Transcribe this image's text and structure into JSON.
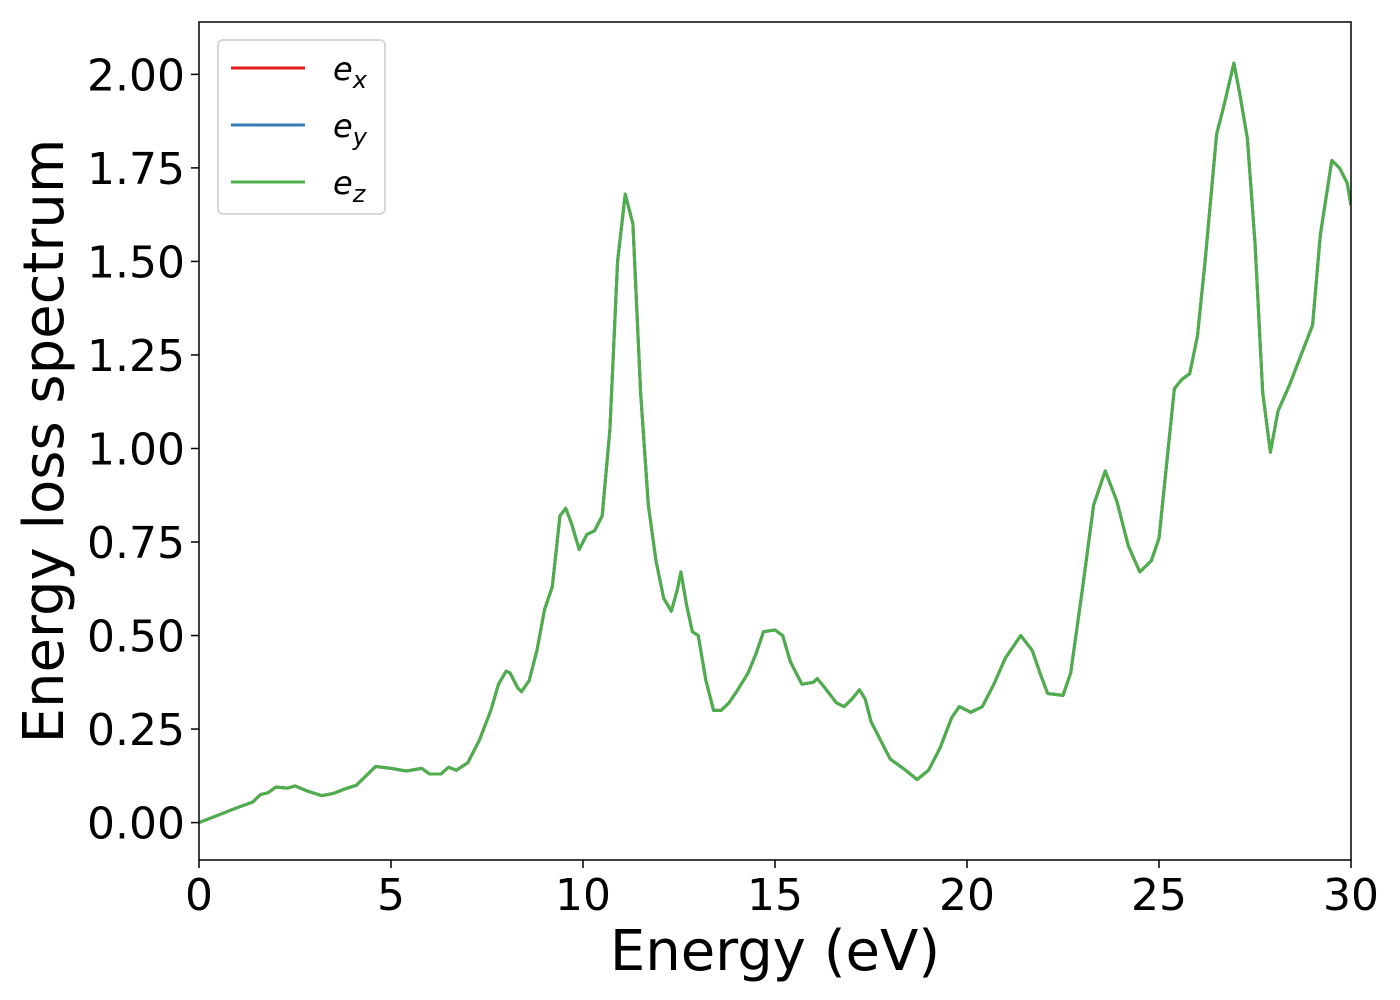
{
  "chart_data": {
    "type": "line",
    "xlabel": "Energy (eV)",
    "ylabel": "Energy loss spectrum",
    "x": [
      0,
      0.5,
      1,
      1.4,
      1.6,
      1.8,
      2.0,
      2.3,
      2.5,
      2.8,
      3.2,
      3.5,
      3.8,
      4.1,
      4.4,
      4.6,
      5.0,
      5.4,
      5.8,
      6.0,
      6.3,
      6.5,
      6.7,
      7.0,
      7.3,
      7.6,
      7.8,
      8.0,
      8.1,
      8.3,
      8.4,
      8.6,
      8.8,
      9.0,
      9.2,
      9.4,
      9.55,
      9.7,
      9.9,
      10.1,
      10.3,
      10.5,
      10.7,
      10.9,
      11.1,
      11.3,
      11.5,
      11.7,
      11.9,
      12.1,
      12.3,
      12.45,
      12.55,
      12.7,
      12.85,
      13.0,
      13.2,
      13.4,
      13.6,
      13.8,
      14.0,
      14.3,
      14.5,
      14.7,
      15.0,
      15.2,
      15.4,
      15.7,
      16.0,
      16.1,
      16.3,
      16.6,
      16.8,
      17.0,
      17.2,
      17.35,
      17.5,
      17.8,
      18.0,
      18.4,
      18.7,
      19.0,
      19.3,
      19.6,
      19.8,
      20.1,
      20.4,
      20.7,
      21.0,
      21.4,
      21.7,
      21.9,
      22.1,
      22.5,
      22.7,
      23.0,
      23.3,
      23.6,
      23.9,
      24.2,
      24.5,
      24.8,
      25.0,
      25.2,
      25.4,
      25.6,
      25.8,
      26.0,
      26.2,
      26.5,
      26.7,
      26.95,
      27.1,
      27.3,
      27.5,
      27.7,
      27.9,
      28.1,
      28.4,
      28.7,
      29.0,
      29.2,
      29.5,
      29.7,
      29.9,
      30.0
    ],
    "series": [
      {
        "name": "ex",
        "color": "#e41a1c",
        "values": [
          0,
          0.02,
          0.04,
          0.055,
          0.075,
          0.08,
          0.095,
          0.092,
          0.098,
          0.085,
          0.072,
          0.078,
          0.09,
          0.1,
          0.13,
          0.15,
          0.145,
          0.138,
          0.145,
          0.13,
          0.13,
          0.148,
          0.14,
          0.16,
          0.22,
          0.3,
          0.37,
          0.405,
          0.4,
          0.36,
          0.35,
          0.38,
          0.46,
          0.57,
          0.63,
          0.82,
          0.84,
          0.8,
          0.73,
          0.77,
          0.78,
          0.82,
          1.05,
          1.5,
          1.68,
          1.6,
          1.15,
          0.85,
          0.7,
          0.6,
          0.565,
          0.62,
          0.67,
          0.58,
          0.51,
          0.5,
          0.38,
          0.3,
          0.3,
          0.32,
          0.35,
          0.4,
          0.45,
          0.51,
          0.515,
          0.5,
          0.43,
          0.37,
          0.375,
          0.385,
          0.36,
          0.32,
          0.31,
          0.33,
          0.355,
          0.33,
          0.27,
          0.21,
          0.17,
          0.14,
          0.115,
          0.14,
          0.2,
          0.28,
          0.31,
          0.295,
          0.31,
          0.37,
          0.44,
          0.5,
          0.46,
          0.4,
          0.345,
          0.34,
          0.4,
          0.62,
          0.85,
          0.94,
          0.86,
          0.74,
          0.67,
          0.7,
          0.76,
          0.96,
          1.16,
          1.185,
          1.2,
          1.3,
          1.5,
          1.84,
          1.92,
          2.03,
          1.95,
          1.83,
          1.55,
          1.15,
          0.99,
          1.1,
          1.17,
          1.25,
          1.33,
          1.57,
          1.77,
          1.75,
          1.71,
          1.65
        ]
      },
      {
        "name": "ey",
        "color": "#377eb8",
        "values": [
          0,
          0.02,
          0.04,
          0.055,
          0.075,
          0.08,
          0.095,
          0.092,
          0.098,
          0.085,
          0.072,
          0.078,
          0.09,
          0.1,
          0.13,
          0.15,
          0.145,
          0.138,
          0.145,
          0.13,
          0.13,
          0.148,
          0.14,
          0.16,
          0.22,
          0.3,
          0.37,
          0.405,
          0.4,
          0.36,
          0.35,
          0.38,
          0.46,
          0.57,
          0.63,
          0.82,
          0.84,
          0.8,
          0.73,
          0.77,
          0.78,
          0.82,
          1.05,
          1.5,
          1.68,
          1.6,
          1.15,
          0.85,
          0.7,
          0.6,
          0.565,
          0.62,
          0.67,
          0.58,
          0.51,
          0.5,
          0.38,
          0.3,
          0.3,
          0.32,
          0.35,
          0.4,
          0.45,
          0.51,
          0.515,
          0.5,
          0.43,
          0.37,
          0.375,
          0.385,
          0.36,
          0.32,
          0.31,
          0.33,
          0.355,
          0.33,
          0.27,
          0.21,
          0.17,
          0.14,
          0.115,
          0.14,
          0.2,
          0.28,
          0.31,
          0.295,
          0.31,
          0.37,
          0.44,
          0.5,
          0.46,
          0.4,
          0.345,
          0.34,
          0.4,
          0.62,
          0.85,
          0.94,
          0.86,
          0.74,
          0.67,
          0.7,
          0.76,
          0.96,
          1.16,
          1.185,
          1.2,
          1.3,
          1.5,
          1.84,
          1.92,
          2.03,
          1.95,
          1.83,
          1.55,
          1.15,
          0.99,
          1.1,
          1.17,
          1.25,
          1.33,
          1.57,
          1.77,
          1.75,
          1.71,
          1.65
        ]
      },
      {
        "name": "ez",
        "color": "#4daf4a",
        "values": [
          0,
          0.02,
          0.04,
          0.055,
          0.075,
          0.08,
          0.095,
          0.092,
          0.098,
          0.085,
          0.072,
          0.078,
          0.09,
          0.1,
          0.13,
          0.15,
          0.145,
          0.138,
          0.145,
          0.13,
          0.13,
          0.148,
          0.14,
          0.16,
          0.22,
          0.3,
          0.37,
          0.405,
          0.4,
          0.36,
          0.35,
          0.38,
          0.46,
          0.57,
          0.63,
          0.82,
          0.84,
          0.8,
          0.73,
          0.77,
          0.78,
          0.82,
          1.05,
          1.5,
          1.68,
          1.6,
          1.15,
          0.85,
          0.7,
          0.6,
          0.565,
          0.62,
          0.67,
          0.58,
          0.51,
          0.5,
          0.38,
          0.3,
          0.3,
          0.32,
          0.35,
          0.4,
          0.45,
          0.51,
          0.515,
          0.5,
          0.43,
          0.37,
          0.375,
          0.385,
          0.36,
          0.32,
          0.31,
          0.33,
          0.355,
          0.33,
          0.27,
          0.21,
          0.17,
          0.14,
          0.115,
          0.14,
          0.2,
          0.28,
          0.31,
          0.295,
          0.31,
          0.37,
          0.44,
          0.5,
          0.46,
          0.4,
          0.345,
          0.34,
          0.4,
          0.62,
          0.85,
          0.94,
          0.86,
          0.74,
          0.67,
          0.7,
          0.76,
          0.96,
          1.16,
          1.185,
          1.2,
          1.3,
          1.5,
          1.84,
          1.92,
          2.03,
          1.95,
          1.83,
          1.55,
          1.15,
          0.99,
          1.1,
          1.17,
          1.25,
          1.33,
          1.57,
          1.77,
          1.75,
          1.71,
          1.65
        ]
      }
    ],
    "xlim": [
      0,
      30
    ],
    "xticks": [
      0,
      5,
      10,
      15,
      20,
      25,
      30
    ],
    "ylim": [
      -0.1,
      2.14
    ],
    "yticks": [
      {
        "value": 0,
        "label": "0.00"
      },
      {
        "value": 0.25,
        "label": "0.25"
      },
      {
        "value": 0.5,
        "label": "0.50"
      },
      {
        "value": 0.75,
        "label": "0.75"
      },
      {
        "value": 1,
        "label": "1.00"
      },
      {
        "value": 1.25,
        "label": "1.25"
      },
      {
        "value": 1.5,
        "label": "1.50"
      },
      {
        "value": 1.75,
        "label": "1.75"
      },
      {
        "value": 2,
        "label": "2.00"
      }
    ],
    "grid": false,
    "legend": "upper left"
  }
}
